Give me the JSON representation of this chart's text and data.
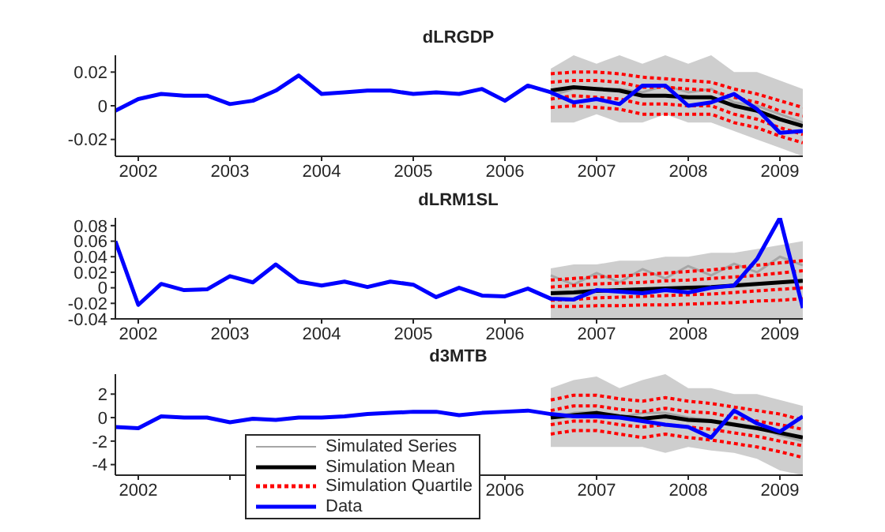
{
  "chart_data": [
    {
      "type": "line",
      "title": "dLRGDP",
      "xlim": [
        "2001-10",
        "2009-04"
      ],
      "xticks": [
        "2002",
        "2003",
        "2004",
        "2005",
        "2006",
        "2007",
        "2008",
        "2009"
      ],
      "ylim": [
        -0.03,
        0.03
      ],
      "yticks": [
        -0.02,
        0,
        0.02
      ],
      "grid": false,
      "legend": false,
      "marker": "none",
      "series": [
        {
          "color": "#a6a6a6",
          "line_style": "solid",
          "x": [
            "2006-07",
            "2006-10",
            "2007-01",
            "2007-04",
            "2007-07",
            "2007-10",
            "2008-01",
            "2008-04",
            "2008-07",
            "2008-10",
            "2009-01",
            "2009-04"
          ],
          "values": [
            0.006,
            0.01,
            0.01,
            0.01,
            0.008,
            0.012,
            0.008,
            0.01,
            0.002,
            0,
            -0.005,
            -0.01
          ],
          "lower": [
            -0.01,
            -0.01,
            -0.005,
            -0.01,
            -0.01,
            -0.005,
            -0.01,
            -0.01,
            -0.015,
            -0.02,
            -0.025,
            -0.03
          ],
          "upper": [
            0.022,
            0.03,
            0.025,
            0.03,
            0.025,
            0.03,
            0.025,
            0.03,
            0.02,
            0.02,
            0.015,
            0.01
          ]
        },
        {
          "color": "#000000",
          "line_style": "solid",
          "x": [
            "2006-07",
            "2006-10",
            "2007-01",
            "2007-04",
            "2007-07",
            "2007-10",
            "2008-01",
            "2008-04",
            "2008-07",
            "2008-10",
            "2009-01",
            "2009-04"
          ],
          "values": [
            0.009,
            0.011,
            0.01,
            0.009,
            0.006,
            0.006,
            0.005,
            0.005,
            0,
            -0.003,
            -0.008,
            -0.012
          ]
        },
        {
          "color": "#ff0000",
          "line_style": "dotted",
          "x": [
            "2006-07",
            "2006-10",
            "2007-01",
            "2007-04",
            "2007-07",
            "2007-10",
            "2008-01",
            "2008-04",
            "2008-07",
            "2008-10",
            "2009-01",
            "2009-04"
          ],
          "values": [
            0.019,
            0.02,
            0.02,
            0.019,
            0.017,
            0.016,
            0.015,
            0.014,
            0.01,
            0.007,
            0.003,
            -0.001
          ]
        },
        {
          "color": "#ff0000",
          "line_style": "dotted",
          "x": [
            "2006-07",
            "2006-10",
            "2007-01",
            "2007-04",
            "2007-07",
            "2007-10",
            "2008-01",
            "2008-04",
            "2008-07",
            "2008-10",
            "2009-01",
            "2009-04"
          ],
          "values": [
            0.014,
            0.015,
            0.015,
            0.014,
            0.011,
            0.011,
            0.01,
            0.009,
            0.005,
            0.002,
            -0.003,
            -0.006
          ]
        },
        {
          "color": "#ff0000",
          "line_style": "dotted",
          "x": [
            "2006-07",
            "2006-10",
            "2007-01",
            "2007-04",
            "2007-07",
            "2007-10",
            "2008-01",
            "2008-04",
            "2008-07",
            "2008-10",
            "2009-01",
            "2009-04"
          ],
          "values": [
            0.004,
            0.006,
            0.005,
            0.004,
            0.001,
            0.001,
            0,
            0,
            -0.005,
            -0.008,
            -0.013,
            -0.017
          ]
        },
        {
          "color": "#ff0000",
          "line_style": "dotted",
          "x": [
            "2006-07",
            "2006-10",
            "2007-01",
            "2007-04",
            "2007-07",
            "2007-10",
            "2008-01",
            "2008-04",
            "2008-07",
            "2008-10",
            "2009-01",
            "2009-04"
          ],
          "values": [
            -0.001,
            0,
            -0.001,
            -0.002,
            -0.005,
            -0.005,
            -0.005,
            -0.005,
            -0.01,
            -0.013,
            -0.018,
            -0.022
          ]
        },
        {
          "color": "#0000ff",
          "line_style": "solid",
          "x": [
            "2001-10",
            "2002-01",
            "2002-04",
            "2002-07",
            "2002-10",
            "2003-01",
            "2003-04",
            "2003-07",
            "2003-10",
            "2004-01",
            "2004-04",
            "2004-07",
            "2004-10",
            "2005-01",
            "2005-04",
            "2005-07",
            "2005-10",
            "2006-01",
            "2006-04",
            "2006-07",
            "2006-10",
            "2007-01",
            "2007-04",
            "2007-07",
            "2007-10",
            "2008-01",
            "2008-04",
            "2008-07",
            "2008-10",
            "2009-01",
            "2009-04"
          ],
          "values": [
            -0.003,
            0.004,
            0.007,
            0.006,
            0.006,
            0.001,
            0.003,
            0.009,
            0.018,
            0.007,
            0.008,
            0.009,
            0.009,
            0.007,
            0.008,
            0.007,
            0.01,
            0.003,
            0.012,
            0.008,
            0.002,
            0.004,
            0.001,
            0.012,
            0.012,
            0,
            0.002,
            0.007,
            -0.002,
            -0.016,
            -0.015
          ]
        }
      ]
    },
    {
      "type": "line",
      "title": "dLRM1SL",
      "xlim": [
        "2001-10",
        "2009-04"
      ],
      "xticks": [
        "2002",
        "2003",
        "2004",
        "2005",
        "2006",
        "2007",
        "2008",
        "2009"
      ],
      "ylim": [
        -0.04,
        0.09
      ],
      "yticks": [
        -0.04,
        -0.02,
        0,
        0.02,
        0.04,
        0.06,
        0.08
      ],
      "grid": false,
      "legend": false,
      "marker": "none",
      "series": [
        {
          "color": "#a6a6a6",
          "line_style": "solid",
          "x": [
            "2006-07",
            "2006-10",
            "2007-01",
            "2007-04",
            "2007-07",
            "2007-10",
            "2008-01",
            "2008-04",
            "2008-07",
            "2008-10",
            "2009-01",
            "2009-04"
          ],
          "values": [
            0.016,
            0.004,
            0.019,
            0.007,
            0.024,
            0.012,
            0.028,
            0.016,
            0.031,
            0.02,
            0.04,
            0.029
          ],
          "lower": [
            -0.04,
            -0.04,
            -0.04,
            -0.04,
            -0.04,
            -0.04,
            -0.04,
            -0.04,
            -0.04,
            -0.04,
            -0.04,
            -0.04
          ],
          "upper": [
            0.025,
            0.03,
            0.03,
            0.035,
            0.035,
            0.04,
            0.04,
            0.045,
            0.045,
            0.05,
            0.055,
            0.06
          ]
        },
        {
          "color": "#000000",
          "line_style": "solid",
          "x": [
            "2006-07",
            "2006-10",
            "2007-01",
            "2007-04",
            "2007-07",
            "2007-10",
            "2008-01",
            "2008-04",
            "2008-07",
            "2008-10",
            "2009-01",
            "2009-04"
          ],
          "values": [
            -0.007,
            -0.006,
            -0.004,
            -0.003,
            -0.002,
            -0.001,
            0,
            0.001,
            0.003,
            0.005,
            0.007,
            0.009
          ]
        },
        {
          "color": "#ff0000",
          "line_style": "dotted",
          "x": [
            "2006-07",
            "2006-10",
            "2007-01",
            "2007-04",
            "2007-07",
            "2007-10",
            "2008-01",
            "2008-04",
            "2008-07",
            "2008-10",
            "2009-01",
            "2009-04"
          ],
          "values": [
            0.01,
            0.012,
            0.014,
            0.015,
            0.017,
            0.019,
            0.021,
            0.023,
            0.026,
            0.029,
            0.032,
            0.035
          ]
        },
        {
          "color": "#ff0000",
          "line_style": "dotted",
          "x": [
            "2006-07",
            "2006-10",
            "2007-01",
            "2007-04",
            "2007-07",
            "2007-10",
            "2008-01",
            "2008-04",
            "2008-07",
            "2008-10",
            "2009-01",
            "2009-04"
          ],
          "values": [
            0.001,
            0.003,
            0.005,
            0.006,
            0.007,
            0.009,
            0.01,
            0.012,
            0.014,
            0.016,
            0.019,
            0.022
          ]
        },
        {
          "color": "#ff0000",
          "line_style": "dotted",
          "x": [
            "2006-07",
            "2006-10",
            "2007-01",
            "2007-04",
            "2007-07",
            "2007-10",
            "2008-01",
            "2008-04",
            "2008-07",
            "2008-10",
            "2009-01",
            "2009-04"
          ],
          "values": [
            -0.016,
            -0.015,
            -0.013,
            -0.012,
            -0.011,
            -0.01,
            -0.009,
            -0.008,
            -0.006,
            -0.004,
            -0.002,
            0
          ]
        },
        {
          "color": "#ff0000",
          "line_style": "dotted",
          "x": [
            "2006-07",
            "2006-10",
            "2007-01",
            "2007-04",
            "2007-07",
            "2007-10",
            "2008-01",
            "2008-04",
            "2008-07",
            "2008-10",
            "2009-01",
            "2009-04"
          ],
          "values": [
            -0.024,
            -0.024,
            -0.023,
            -0.023,
            -0.022,
            -0.022,
            -0.021,
            -0.02,
            -0.019,
            -0.017,
            -0.016,
            -0.014
          ]
        },
        {
          "color": "#0000ff",
          "line_style": "solid",
          "x": [
            "2001-10",
            "2002-01",
            "2002-04",
            "2002-07",
            "2002-10",
            "2003-01",
            "2003-04",
            "2003-07",
            "2003-10",
            "2004-01",
            "2004-04",
            "2004-07",
            "2004-10",
            "2005-01",
            "2005-04",
            "2005-07",
            "2005-10",
            "2006-01",
            "2006-04",
            "2006-07",
            "2006-10",
            "2007-01",
            "2007-04",
            "2007-07",
            "2007-10",
            "2008-01",
            "2008-04",
            "2008-07",
            "2008-10",
            "2009-01",
            "2009-04"
          ],
          "values": [
            0.06,
            -0.022,
            0.005,
            -0.003,
            -0.002,
            0.015,
            0.007,
            0.03,
            0.008,
            0.003,
            0.008,
            0.001,
            0.008,
            0.004,
            -0.012,
            0,
            -0.01,
            -0.011,
            -0.001,
            -0.014,
            -0.015,
            -0.003,
            -0.005,
            -0.007,
            -0.003,
            -0.006,
            0,
            0.003,
            0.037,
            0.09,
            -0.026
          ]
        }
      ]
    },
    {
      "type": "line",
      "title": "d3MTB",
      "xlim": [
        "2001-10",
        "2009-04"
      ],
      "xticks": [
        "2002",
        {
          "value": "2003",
          "label": null
        },
        {
          "value": "2004",
          "label": null
        },
        {
          "value": "2005",
          "label": null
        },
        "2006",
        "2007",
        "2008",
        "2009"
      ],
      "ylim": [
        -4.9,
        3.7
      ],
      "yticks": [
        -4,
        -2,
        0,
        2
      ],
      "grid": false,
      "legend": "bottom left",
      "marker": "none",
      "series": [
        {
          "name": "Simulated Series",
          "color": "#a6a6a6",
          "line_style": "solid",
          "x": [
            "2006-07",
            "2006-10",
            "2007-01",
            "2007-04",
            "2007-07",
            "2007-10",
            "2008-01",
            "2008-04",
            "2008-07",
            "2008-10",
            "2009-01",
            "2009-04"
          ],
          "values": [
            0,
            0.4,
            0.5,
            0,
            0.4,
            0.4,
            0,
            -0.2,
            -0.5,
            -0.8,
            -1.5,
            -2
          ],
          "lower": [
            -2.5,
            -2.5,
            -2.5,
            -2.5,
            -2.5,
            -3,
            -2.5,
            -2.8,
            -3,
            -3.5,
            -4.5,
            -4.9
          ],
          "upper": [
            2.5,
            3.2,
            3.5,
            2.5,
            3.2,
            3.7,
            2.5,
            2.5,
            2,
            2,
            1.5,
            1
          ]
        },
        {
          "name": "Simulation Mean",
          "color": "#000000",
          "line_style": "solid",
          "x": [
            "2006-07",
            "2006-10",
            "2007-01",
            "2007-04",
            "2007-07",
            "2007-10",
            "2008-01",
            "2008-04",
            "2008-07",
            "2008-10",
            "2009-01",
            "2009-04"
          ],
          "values": [
            0,
            0.2,
            0.4,
            0.1,
            -0.1,
            0.1,
            -0.2,
            -0.3,
            -0.6,
            -0.9,
            -1.3,
            -1.7
          ]
        },
        {
          "name": "Simulation Quartile",
          "color": "#ff0000",
          "line_style": "dotted",
          "x": [
            "2006-07",
            "2006-10",
            "2007-01",
            "2007-04",
            "2007-07",
            "2007-10",
            "2008-01",
            "2008-04",
            "2008-07",
            "2008-10",
            "2009-01",
            "2009-04"
          ],
          "values": [
            1.5,
            1.9,
            1.9,
            1.6,
            1.4,
            1.7,
            1.4,
            1.2,
            0.9,
            0.6,
            0.3,
            -0.2
          ]
        },
        {
          "color": "#ff0000",
          "line_style": "dotted",
          "x": [
            "2006-07",
            "2006-10",
            "2007-01",
            "2007-04",
            "2007-07",
            "2007-10",
            "2008-01",
            "2008-04",
            "2008-07",
            "2008-10",
            "2009-01",
            "2009-04"
          ],
          "values": [
            0.6,
            1,
            1,
            0.7,
            0.5,
            0.8,
            0.5,
            0.4,
            0,
            -0.3,
            -0.6,
            -1
          ]
        },
        {
          "color": "#ff0000",
          "line_style": "dotted",
          "x": [
            "2006-07",
            "2006-10",
            "2007-01",
            "2007-04",
            "2007-07",
            "2007-10",
            "2008-01",
            "2008-04",
            "2008-07",
            "2008-10",
            "2009-01",
            "2009-04"
          ],
          "values": [
            -0.6,
            -0.3,
            -0.3,
            -0.6,
            -0.8,
            -0.6,
            -0.8,
            -1,
            -1.3,
            -1.6,
            -2,
            -2.4
          ]
        },
        {
          "color": "#ff0000",
          "line_style": "dotted",
          "x": [
            "2006-07",
            "2006-10",
            "2007-01",
            "2007-04",
            "2007-07",
            "2007-10",
            "2008-01",
            "2008-04",
            "2008-07",
            "2008-10",
            "2009-01",
            "2009-04"
          ],
          "values": [
            -1.4,
            -1.1,
            -1.1,
            -1.4,
            -1.7,
            -1.4,
            -1.7,
            -1.9,
            -2.2,
            -2.5,
            -2.9,
            -3.4
          ]
        },
        {
          "name": "Data",
          "color": "#0000ff",
          "line_style": "solid",
          "x": [
            "2001-10",
            "2002-01",
            "2002-04",
            "2002-07",
            "2002-10",
            "2003-01",
            "2003-04",
            "2003-07",
            "2003-10",
            "2004-01",
            "2004-04",
            "2004-07",
            "2004-10",
            "2005-01",
            "2005-04",
            "2005-07",
            "2005-10",
            "2006-01",
            "2006-04",
            "2006-07",
            "2006-10",
            "2007-01",
            "2007-04",
            "2007-07",
            "2007-10",
            "2008-01",
            "2008-04",
            "2008-07",
            "2008-10",
            "2009-01",
            "2009-04"
          ],
          "values": [
            -0.8,
            -0.9,
            0.1,
            0,
            0,
            -0.4,
            -0.1,
            -0.2,
            0,
            0,
            0.1,
            0.3,
            0.4,
            0.5,
            0.5,
            0.2,
            0.4,
            0.5,
            0.6,
            0.3,
            0.1,
            0.1,
            0,
            -0.3,
            -0.6,
            -0.8,
            -1.7,
            0.6,
            -0.5,
            -1.2,
            0.1
          ]
        }
      ]
    }
  ]
}
